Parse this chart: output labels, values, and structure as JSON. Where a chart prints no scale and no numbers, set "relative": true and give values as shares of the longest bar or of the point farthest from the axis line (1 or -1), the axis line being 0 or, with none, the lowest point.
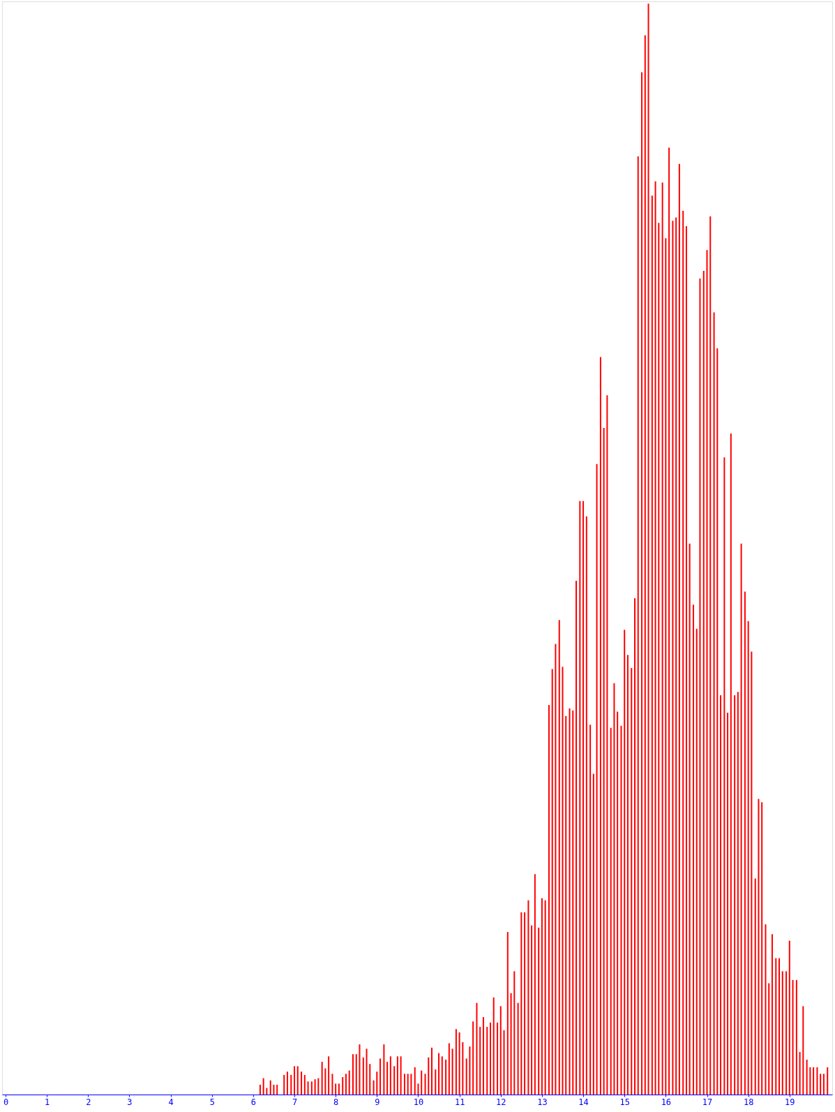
{
  "chart_data": {
    "type": "bar",
    "relative": true,
    "color": "#ff0000",
    "xlim": [
      0,
      19.95
    ],
    "xticks": [
      0,
      1,
      2,
      3,
      4,
      5,
      6,
      7,
      8,
      9,
      10,
      11,
      12,
      13,
      14,
      15,
      16,
      17,
      18,
      19
    ],
    "x": [
      6.17,
      6.25,
      6.33,
      6.42,
      6.5,
      6.58,
      6.67,
      6.75,
      6.83,
      6.92,
      7.0,
      7.08,
      7.17,
      7.25,
      7.33,
      7.42,
      7.5,
      7.58,
      7.67,
      7.75,
      7.83,
      7.92,
      8.0,
      8.08,
      8.17,
      8.25,
      8.33,
      8.42,
      8.5,
      8.58,
      8.67,
      8.75,
      8.83,
      8.92,
      9.0,
      9.08,
      9.17,
      9.25,
      9.33,
      9.42,
      9.5,
      9.58,
      9.67,
      9.75,
      9.83,
      9.92,
      10.0,
      10.08,
      10.17,
      10.25,
      10.33,
      10.42,
      10.5,
      10.58,
      10.67,
      10.75,
      10.83,
      10.92,
      11.0,
      11.08,
      11.17,
      11.25,
      11.33,
      11.42,
      11.5,
      11.58,
      11.67,
      11.75,
      11.83,
      11.92,
      12.0,
      12.08,
      12.17,
      12.25,
      12.33,
      12.42,
      12.5,
      12.58,
      12.67,
      12.75,
      12.83,
      12.92,
      13.0,
      13.08,
      13.17,
      13.25,
      13.33,
      13.42,
      13.5,
      13.58,
      13.67,
      13.75,
      13.83,
      13.92,
      14.0,
      14.08,
      14.17,
      14.25,
      14.33,
      14.42,
      14.5,
      14.58,
      14.67,
      14.75,
      14.83,
      14.92,
      15.0,
      15.08,
      15.17,
      15.25,
      15.33,
      15.42,
      15.5,
      15.58,
      15.67,
      15.75,
      15.83,
      15.92,
      16.0,
      16.08,
      16.17,
      16.25,
      16.33,
      16.42,
      16.5,
      16.58,
      16.67,
      16.75,
      16.83,
      16.92,
      17.0,
      17.08,
      17.17,
      17.25,
      17.33,
      17.42,
      17.5,
      17.58,
      17.67,
      17.75,
      17.83,
      17.92,
      18.0,
      18.08,
      18.17,
      18.25,
      18.33,
      18.42,
      18.5,
      18.58,
      18.67,
      18.75,
      18.83,
      18.92,
      19.0,
      19.08,
      19.17,
      19.25,
      19.33,
      19.42,
      19.5,
      19.58,
      19.67,
      19.75,
      19.83,
      19.92
    ],
    "values": [
      0.009,
      0.015,
      0.006,
      0.013,
      0.009,
      0.009,
      0,
      0.018,
      0.021,
      0.018,
      0.026,
      0.026,
      0.021,
      0.018,
      0.012,
      0.012,
      0.014,
      0.015,
      0.03,
      0.024,
      0.035,
      0.019,
      0.01,
      0.01,
      0.016,
      0.019,
      0.022,
      0.037,
      0.037,
      0.046,
      0.034,
      0.042,
      0.028,
      0.013,
      0.021,
      0.033,
      0.046,
      0.03,
      0.035,
      0.026,
      0.035,
      0.035,
      0.019,
      0.019,
      0.019,
      0.025,
      0.01,
      0.022,
      0.019,
      0.034,
      0.043,
      0.023,
      0.038,
      0.035,
      0.032,
      0.047,
      0.042,
      0.06,
      0.057,
      0.048,
      0.033,
      0.044,
      0.067,
      0.084,
      0.062,
      0.071,
      0.062,
      0.066,
      0.089,
      0.066,
      0.081,
      0.059,
      0.149,
      0.093,
      0.113,
      0.084,
      0.167,
      0.167,
      0.178,
      0.155,
      0.202,
      0.153,
      0.18,
      0.178,
      0.357,
      0.39,
      0.413,
      0.435,
      0.392,
      0.347,
      0.354,
      0.352,
      0.471,
      0.544,
      0.544,
      0.53,
      0.339,
      0.294,
      0.578,
      0.676,
      0.611,
      0.641,
      0.336,
      0.377,
      0.351,
      0.338,
      0.426,
      0.403,
      0.391,
      0.455,
      0.86,
      0.937,
      0.971,
      1,
      0.824,
      0.837,
      0.799,
      0.836,
      0.785,
      0.868,
      0.801,
      0.804,
      0.853,
      0.81,
      0.796,
      0.505,
      0.449,
      0.427,
      0.748,
      0.755,
      0.774,
      0.805,
      0.717,
      0.684,
      0.366,
      0.584,
      0.35,
      0.606,
      0.366,
      0.369,
      0.505,
      0.461,
      0.434,
      0.406,
      0.198,
      0.271,
      0.268,
      0.156,
      0.102,
      0.147,
      0.125,
      0.125,
      0.113,
      0.113,
      0.141,
      0.105,
      0.105,
      0.039,
      0.081,
      0.032,
      0.025,
      0.025,
      0.025,
      0.019,
      0.019,
      0.025
    ]
  }
}
